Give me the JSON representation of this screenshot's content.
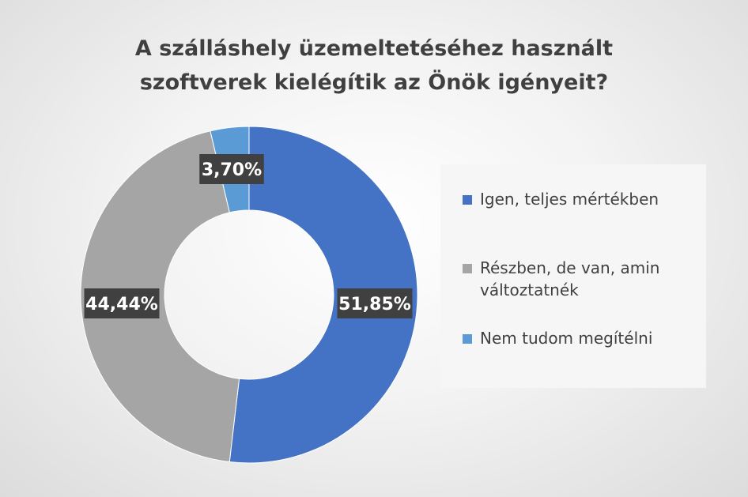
{
  "chart_data": {
    "type": "pie",
    "title_lines": [
      "A szálláshely üzemeltetéséhez használt",
      "szoftverek kielégítik az Önök igényeit?"
    ],
    "categories": [
      "Igen, teljes mértékben",
      "Részben, de van, amin változtatnék",
      "Nem tudom megítélni"
    ],
    "values": [
      51.85,
      44.44,
      3.7
    ],
    "value_labels": [
      "51,85%",
      "44,44%",
      "3,70%"
    ],
    "colors": [
      "#4472C4",
      "#A5A5A5",
      "#5B9BD5"
    ],
    "label_bg": "#404040",
    "legend_position": "right",
    "style": "donut"
  }
}
